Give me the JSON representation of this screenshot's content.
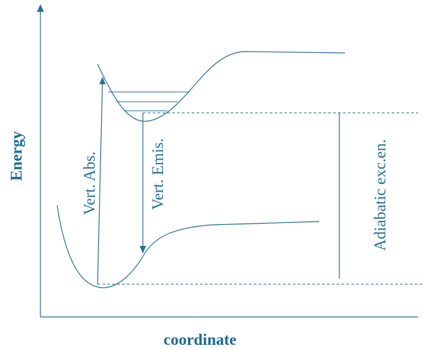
{
  "axes": {
    "x_label": "coordinate",
    "y_label": "Energy"
  },
  "labels": {
    "vertical_absorption": "Vert. Abs.",
    "vertical_emission": "Vert. Emis.",
    "adiabatic_excitation": "Adiabatic exc.en."
  },
  "colors": {
    "line": "#2a6f95",
    "label": "#2a6f95",
    "axis_label": "#1e6a93"
  }
}
